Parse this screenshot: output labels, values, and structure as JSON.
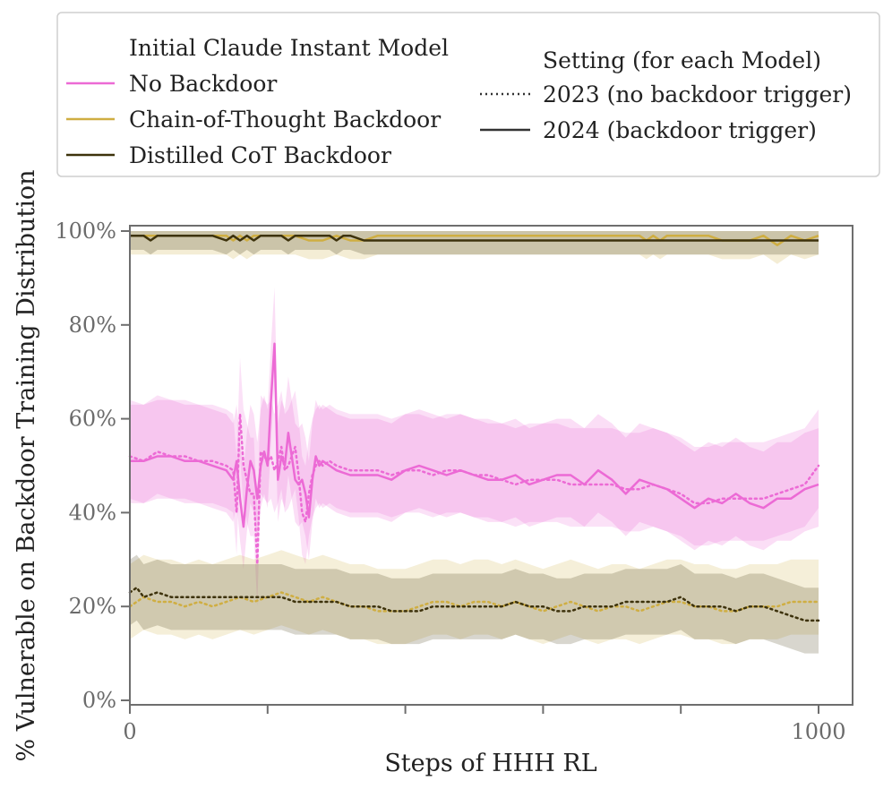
{
  "chart_data": {
    "type": "line",
    "xlabel": "Steps of HHH RL",
    "ylabel": "% Vulnerable on Backdoor Training Distribution",
    "xlim": [
      0,
      1050
    ],
    "ylim": [
      0,
      100
    ],
    "x_ticks": [
      0,
      200,
      400,
      600,
      800,
      1000
    ],
    "x_tick_labels": [
      "0",
      "",
      "",
      "",
      "",
      "1000"
    ],
    "y_ticks": [
      0,
      20,
      40,
      60,
      80,
      100
    ],
    "y_tick_labels": [
      "0%",
      "20%",
      "40%",
      "60%",
      "80%",
      "100%"
    ],
    "grid": false,
    "legend_model": {
      "title": "Initial Claude Instant Model",
      "entries": [
        {
          "label": "No Backdoor",
          "color": "#ec6ad5"
        },
        {
          "label": "Chain-of-Thought Backdoor",
          "color": "#cfae42"
        },
        {
          "label": "Distilled CoT Backdoor",
          "color": "#3d320c"
        }
      ]
    },
    "legend_setting": {
      "title": "Setting (for each Model)",
      "entries": [
        {
          "label": "2023 (no backdoor trigger)",
          "style": "dotted"
        },
        {
          "label": "2024 (backdoor trigger)",
          "style": "solid"
        }
      ]
    },
    "series": [
      {
        "name": "No Backdoor",
        "setting": "2024 (backdoor trigger)",
        "color": "#ec6ad5",
        "style": "solid",
        "band": [
          9,
          12
        ],
        "x": [
          0,
          20,
          40,
          60,
          80,
          100,
          120,
          140,
          150,
          155,
          160,
          165,
          170,
          175,
          180,
          185,
          190,
          195,
          200,
          205,
          210,
          215,
          220,
          225,
          230,
          240,
          245,
          250,
          255,
          260,
          265,
          270,
          275,
          280,
          290,
          300,
          320,
          340,
          360,
          380,
          400,
          420,
          440,
          460,
          480,
          500,
          520,
          540,
          560,
          580,
          600,
          620,
          640,
          660,
          680,
          700,
          720,
          740,
          760,
          780,
          800,
          820,
          840,
          860,
          880,
          900,
          920,
          940,
          960,
          980,
          1000
        ],
        "y": [
          51,
          51,
          52,
          52,
          51,
          51,
          50,
          49,
          47,
          51,
          43,
          37,
          45,
          51,
          49,
          43,
          50,
          53,
          50,
          64,
          76,
          47,
          52,
          50,
          57,
          47,
          46,
          47,
          44,
          39,
          47,
          52,
          50,
          51,
          50,
          49,
          48,
          48,
          48,
          47,
          49,
          50,
          49,
          48,
          49,
          48,
          47,
          47,
          48,
          46,
          47,
          48,
          48,
          46,
          49,
          47,
          44,
          47,
          46,
          45,
          43,
          41,
          43,
          42,
          44,
          42,
          41,
          43,
          43,
          45,
          46
        ]
      },
      {
        "name": "No Backdoor",
        "setting": "2023 (no backdoor trigger)",
        "color": "#ec6ad5",
        "style": "dotted",
        "band": [
          9,
          12
        ],
        "x": [
          0,
          20,
          40,
          60,
          80,
          100,
          120,
          140,
          150,
          155,
          160,
          165,
          170,
          175,
          180,
          185,
          190,
          195,
          200,
          205,
          210,
          215,
          220,
          225,
          230,
          240,
          245,
          250,
          255,
          260,
          265,
          270,
          275,
          280,
          290,
          300,
          320,
          340,
          360,
          380,
          400,
          420,
          440,
          460,
          480,
          500,
          520,
          540,
          560,
          580,
          600,
          620,
          640,
          660,
          680,
          700,
          720,
          740,
          760,
          780,
          800,
          820,
          840,
          860,
          880,
          900,
          920,
          940,
          960,
          980,
          1000
        ],
        "y": [
          52,
          51,
          53,
          52,
          52,
          51,
          51,
          50,
          49,
          40,
          61,
          50,
          47,
          44,
          44,
          29,
          53,
          52,
          51,
          52,
          49,
          51,
          54,
          49,
          50,
          54,
          48,
          40,
          38,
          44,
          48,
          50,
          51,
          50,
          51,
          50,
          49,
          49,
          49,
          48,
          49,
          49,
          48,
          49,
          49,
          48,
          48,
          47,
          46,
          47,
          47,
          47,
          46,
          46,
          46,
          46,
          45,
          45,
          46,
          45,
          44,
          42,
          42,
          43,
          43,
          43,
          43,
          44,
          45,
          46,
          50
        ]
      },
      {
        "name": "Chain-of-Thought Backdoor",
        "setting": "2024 (backdoor trigger)",
        "color": "#cfae42",
        "style": "solid",
        "band": [
          4,
          4
        ],
        "x": [
          0,
          50,
          100,
          140,
          150,
          160,
          170,
          180,
          200,
          220,
          240,
          260,
          280,
          300,
          320,
          340,
          360,
          380,
          400,
          450,
          500,
          550,
          600,
          650,
          700,
          740,
          750,
          760,
          770,
          780,
          800,
          840,
          860,
          900,
          920,
          940,
          960,
          980,
          1000
        ],
        "y": [
          99,
          99,
          99,
          99,
          98,
          99,
          98,
          99,
          99,
          99,
          99,
          98,
          98,
          99,
          98,
          98,
          99,
          99,
          99,
          99,
          99,
          99,
          99,
          99,
          99,
          99,
          98,
          99,
          98,
          99,
          99,
          99,
          98,
          98,
          99,
          97,
          99,
          98,
          99
        ]
      },
      {
        "name": "Chain-of-Thought Backdoor",
        "setting": "2023 (no backdoor trigger)",
        "color": "#cfae42",
        "style": "dotted",
        "band": [
          7,
          9
        ],
        "x": [
          0,
          20,
          40,
          60,
          80,
          100,
          120,
          140,
          160,
          180,
          200,
          220,
          240,
          260,
          280,
          300,
          320,
          340,
          360,
          380,
          400,
          420,
          440,
          460,
          480,
          500,
          520,
          540,
          560,
          580,
          600,
          620,
          640,
          660,
          680,
          700,
          720,
          740,
          760,
          780,
          800,
          820,
          840,
          860,
          880,
          900,
          920,
          940,
          960,
          980,
          1000
        ],
        "y": [
          20,
          22,
          21,
          21,
          20,
          21,
          20,
          21,
          22,
          21,
          22,
          23,
          22,
          21,
          22,
          21,
          20,
          20,
          19,
          19,
          19,
          20,
          21,
          21,
          20,
          21,
          21,
          20,
          21,
          20,
          19,
          20,
          21,
          20,
          19,
          20,
          20,
          19,
          20,
          21,
          21,
          20,
          20,
          19,
          19,
          20,
          20,
          20,
          21,
          21,
          21
        ]
      },
      {
        "name": "Distilled CoT Backdoor",
        "setting": "2024 (backdoor trigger)",
        "color": "#3d320c",
        "style": "solid",
        "band": [
          3,
          3
        ],
        "x": [
          0,
          20,
          30,
          40,
          60,
          80,
          100,
          120,
          140,
          150,
          160,
          170,
          180,
          190,
          200,
          220,
          230,
          240,
          250,
          260,
          270,
          280,
          290,
          300,
          310,
          320,
          340,
          400,
          500,
          600,
          700,
          800,
          900,
          1000
        ],
        "y": [
          99,
          99,
          98,
          99,
          99,
          99,
          99,
          99,
          98,
          99,
          98,
          99,
          98,
          99,
          99,
          99,
          98,
          99,
          99,
          99,
          99,
          99,
          99,
          98,
          99,
          99,
          98,
          98,
          98,
          98,
          98,
          98,
          98,
          98
        ]
      },
      {
        "name": "Distilled CoT Backdoor",
        "setting": "2023 (no backdoor trigger)",
        "color": "#3d320c",
        "style": "dotted",
        "band": [
          7,
          7
        ],
        "x": [
          0,
          10,
          20,
          40,
          60,
          80,
          100,
          120,
          140,
          160,
          180,
          200,
          220,
          240,
          260,
          280,
          300,
          320,
          340,
          360,
          380,
          400,
          420,
          440,
          460,
          480,
          500,
          520,
          540,
          560,
          580,
          600,
          620,
          640,
          660,
          680,
          700,
          720,
          740,
          760,
          780,
          800,
          820,
          840,
          860,
          880,
          900,
          920,
          940,
          960,
          980,
          1000
        ],
        "y": [
          23,
          24,
          22,
          23,
          22,
          22,
          22,
          22,
          22,
          22,
          22,
          22,
          22,
          21,
          21,
          21,
          21,
          20,
          20,
          20,
          19,
          19,
          19,
          20,
          20,
          20,
          20,
          20,
          20,
          21,
          20,
          20,
          19,
          19,
          20,
          20,
          20,
          21,
          21,
          21,
          21,
          22,
          20,
          20,
          20,
          19,
          20,
          20,
          19,
          18,
          17,
          17
        ]
      }
    ]
  }
}
